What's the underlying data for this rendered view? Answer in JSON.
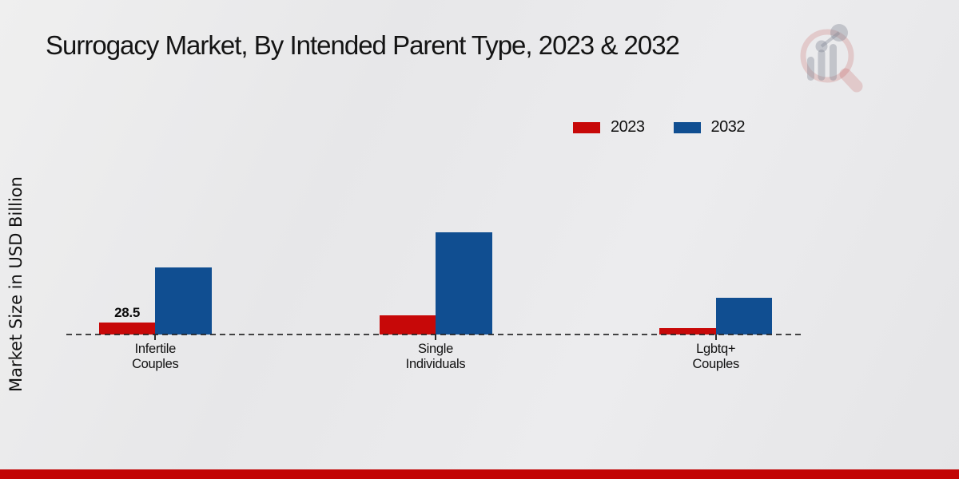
{
  "chart_data": {
    "type": "bar",
    "title": "Surrogacy Market, By Intended Parent Type, 2023 & 2032",
    "xlabel": "",
    "ylabel": "Market Size in USD Billion",
    "categories": [
      "Infertile Couples",
      "Single Individuals",
      "Lgbtq+ Couples"
    ],
    "category_label_lines": [
      [
        "Infertile",
        "Couples"
      ],
      [
        "Single",
        "Individuals"
      ],
      [
        "Lgbtq+",
        "Couples"
      ]
    ],
    "series": [
      {
        "name": "2023",
        "color": "#c70808",
        "values": [
          28.5,
          45,
          15
        ],
        "value_labels": [
          "28.5",
          null,
          null
        ]
      },
      {
        "name": "2032",
        "color": "#104e91",
        "values": [
          160,
          243,
          87
        ],
        "value_labels": [
          null,
          null,
          null
        ]
      }
    ],
    "ylim": [
      0,
      250
    ],
    "y_axis_visible": false,
    "grid": false,
    "baseline_style": "dashed",
    "legend_position": "top-right"
  },
  "branding": {
    "logo_icon": "magnifier-bar-chart-icon",
    "logo_ring_color": "rgba(192,70,70,0.20)",
    "logo_bar_color": "rgba(128,134,146,0.38)",
    "footer_stripe_color": "#c20404"
  }
}
